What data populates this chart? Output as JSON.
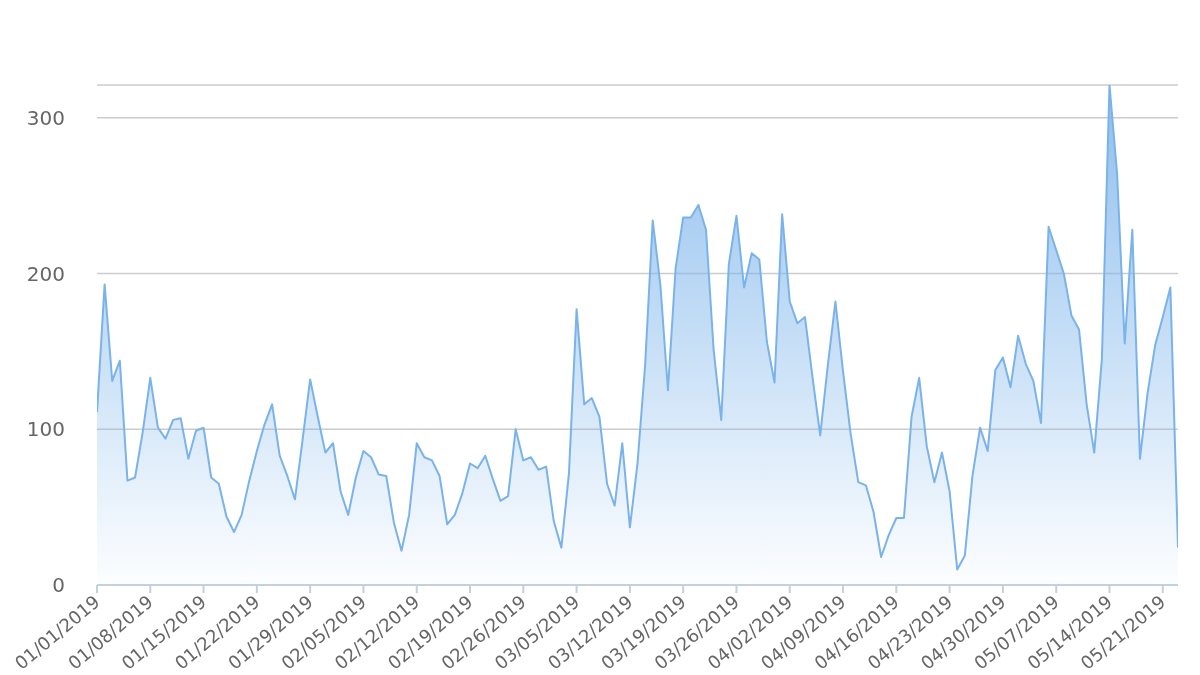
{
  "chart_data": {
    "type": "area",
    "categories": [
      "01/01/2019",
      null,
      null,
      null,
      null,
      null,
      null,
      "01/08/2019",
      null,
      null,
      null,
      null,
      null,
      null,
      "01/15/2019",
      null,
      null,
      null,
      null,
      null,
      null,
      "01/22/2019",
      null,
      null,
      null,
      null,
      null,
      null,
      "01/29/2019",
      null,
      null,
      null,
      null,
      null,
      null,
      "02/05/2019",
      null,
      null,
      null,
      null,
      null,
      null,
      "02/12/2019",
      null,
      null,
      null,
      null,
      null,
      null,
      "02/19/2019",
      null,
      null,
      null,
      null,
      null,
      null,
      "02/26/2019",
      null,
      null,
      null,
      null,
      null,
      null,
      "03/05/2019",
      null,
      null,
      null,
      null,
      null,
      null,
      "03/12/2019",
      null,
      null,
      null,
      null,
      null,
      null,
      "03/19/2019",
      null,
      null,
      null,
      null,
      null,
      null,
      "03/26/2019",
      null,
      null,
      null,
      null,
      null,
      null,
      "04/02/2019",
      null,
      null,
      null,
      null,
      null,
      null,
      "04/09/2019",
      null,
      null,
      null,
      null,
      null,
      null,
      "04/16/2019",
      null,
      null,
      null,
      null,
      null,
      null,
      "04/23/2019",
      null,
      null,
      null,
      null,
      null,
      null,
      "04/30/2019",
      null,
      null,
      null,
      null,
      null,
      null,
      "05/07/2019",
      null,
      null,
      null,
      null,
      null,
      null,
      "05/14/2019",
      null,
      null,
      null,
      null,
      null,
      null,
      "05/21/2019",
      null,
      null
    ],
    "values": [
      111,
      193,
      131,
      144,
      67,
      69,
      98,
      133,
      101,
      94,
      106,
      107,
      81,
      99,
      101,
      69,
      65,
      44,
      34,
      45,
      67,
      86,
      103,
      116,
      83,
      70,
      55,
      93,
      132,
      108,
      85,
      91,
      60,
      45,
      69,
      86,
      82,
      71,
      70,
      40,
      22,
      45,
      91,
      82,
      80,
      70,
      39,
      45,
      59,
      78,
      75,
      83,
      68,
      54,
      57,
      100,
      80,
      82,
      74,
      76,
      41,
      24,
      72,
      177,
      116,
      120,
      108,
      65,
      51,
      91,
      37,
      78,
      141,
      234,
      193,
      125,
      203,
      236,
      236,
      244,
      228,
      151,
      106,
      206,
      237,
      191,
      213,
      209,
      156,
      130,
      238,
      182,
      168,
      172,
      133,
      96,
      141,
      182,
      137,
      97,
      66,
      64,
      47,
      18,
      32,
      43,
      43,
      108,
      133,
      89,
      66,
      85,
      60,
      10,
      19,
      70,
      101,
      86,
      138,
      146,
      127,
      160,
      142,
      131,
      104,
      230,
      215,
      200,
      173,
      164,
      116,
      85,
      145,
      321,
      264,
      155,
      228,
      81,
      123,
      154,
      172,
      191,
      24
    ],
    "color": "#7ab3ea",
    "ylim": [
      0,
      321
    ],
    "yticks": [
      0,
      100,
      200,
      300
    ],
    "grid": "y"
  }
}
